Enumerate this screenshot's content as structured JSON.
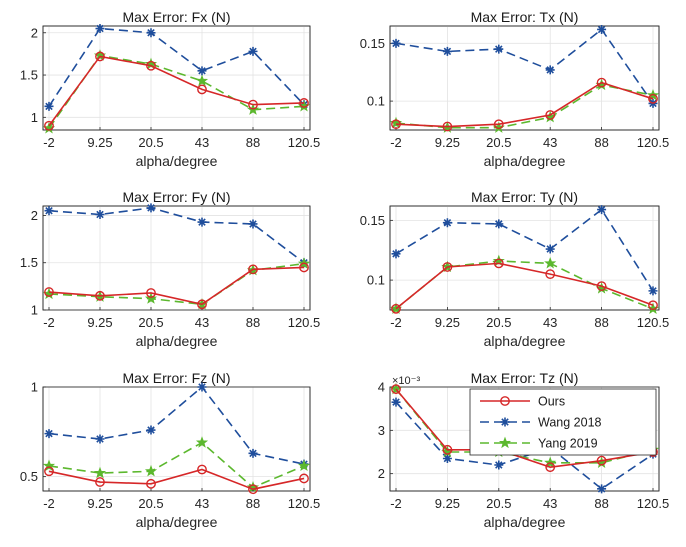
{
  "legend": {
    "entries": [
      "Ours",
      "Wang 2018",
      "Yang 2019"
    ]
  },
  "series_styles": [
    {
      "name": "Ours",
      "color": "#d62728",
      "marker": "circle",
      "dash": "solid"
    },
    {
      "name": "Wang 2018",
      "color": "#1f4e9c",
      "marker": "asterisk",
      "dash": "dashed"
    },
    {
      "name": "Yang 2019",
      "color": "#5cb82e",
      "marker": "star",
      "dash": "dashed"
    }
  ],
  "chart_data": [
    {
      "type": "line",
      "title": "Max Error: Fx (N)",
      "xlabel": "alpha/degree",
      "ylabel": "",
      "categories": [
        "-2",
        "9.25",
        "20.5",
        "43",
        "88",
        "120.5"
      ],
      "yticks": [
        "1",
        "1.5",
        "2"
      ],
      "ytick_values": [
        1,
        1.5,
        2
      ],
      "ylim": [
        0.85,
        2.08
      ],
      "grid": true,
      "series": [
        {
          "name": "Ours",
          "values": [
            0.9,
            1.72,
            1.61,
            1.33,
            1.15,
            1.17
          ]
        },
        {
          "name": "Wang 2018",
          "values": [
            1.13,
            2.05,
            2.0,
            1.55,
            1.78,
            1.15
          ]
        },
        {
          "name": "Yang 2019",
          "values": [
            0.87,
            1.73,
            1.63,
            1.43,
            1.09,
            1.13
          ]
        }
      ]
    },
    {
      "type": "line",
      "title": "Max Error: Tx (N)",
      "xlabel": "alpha/degree",
      "ylabel": "",
      "categories": [
        "-2",
        "9.25",
        "20.5",
        "43",
        "88",
        "120.5"
      ],
      "yticks": [
        "0.1",
        "0.15"
      ],
      "ytick_values": [
        0.1,
        0.15
      ],
      "ylim": [
        0.075,
        0.165
      ],
      "grid": true,
      "series": [
        {
          "name": "Ours",
          "values": [
            0.08,
            0.078,
            0.08,
            0.088,
            0.116,
            0.102
          ]
        },
        {
          "name": "Wang 2018",
          "values": [
            0.15,
            0.143,
            0.145,
            0.127,
            0.162,
            0.098
          ]
        },
        {
          "name": "Yang 2019",
          "values": [
            0.081,
            0.077,
            0.077,
            0.086,
            0.114,
            0.105
          ]
        }
      ]
    },
    {
      "type": "line",
      "title": "Max Error: Fy (N)",
      "xlabel": "alpha/degree",
      "ylabel": "",
      "categories": [
        "-2",
        "9.25",
        "20.5",
        "43",
        "88",
        "120.5"
      ],
      "yticks": [
        "1",
        "1.5",
        "2"
      ],
      "ytick_values": [
        1,
        1.5,
        2
      ],
      "ylim": [
        1.0,
        2.1
      ],
      "grid": true,
      "series": [
        {
          "name": "Ours",
          "values": [
            1.19,
            1.15,
            1.18,
            1.06,
            1.43,
            1.45
          ]
        },
        {
          "name": "Wang 2018",
          "values": [
            2.05,
            2.01,
            2.08,
            1.93,
            1.91,
            1.5
          ]
        },
        {
          "name": "Yang 2019",
          "values": [
            1.17,
            1.14,
            1.12,
            1.06,
            1.42,
            1.49
          ]
        }
      ]
    },
    {
      "type": "line",
      "title": "Max Error: Ty (N)",
      "xlabel": "alpha/degree",
      "ylabel": "",
      "categories": [
        "-2",
        "9.25",
        "20.5",
        "43",
        "88",
        "120.5"
      ],
      "yticks": [
        "0.1",
        "0.15"
      ],
      "ytick_values": [
        0.1,
        0.15
      ],
      "ylim": [
        0.075,
        0.162
      ],
      "grid": true,
      "series": [
        {
          "name": "Ours",
          "values": [
            0.076,
            0.111,
            0.114,
            0.105,
            0.095,
            0.079
          ]
        },
        {
          "name": "Wang 2018",
          "values": [
            0.122,
            0.148,
            0.147,
            0.126,
            0.159,
            0.091
          ]
        },
        {
          "name": "Yang 2019",
          "values": [
            0.076,
            0.111,
            0.116,
            0.114,
            0.093,
            0.076
          ]
        }
      ]
    },
    {
      "type": "line",
      "title": "Max Error: Fz (N)",
      "xlabel": "alpha/degree",
      "ylabel": "",
      "categories": [
        "-2",
        "9.25",
        "20.5",
        "43",
        "88",
        "120.5"
      ],
      "yticks": [
        "0.5",
        "1"
      ],
      "ytick_values": [
        0.5,
        1
      ],
      "ylim": [
        0.42,
        1.0
      ],
      "grid": true,
      "series": [
        {
          "name": "Ours",
          "values": [
            0.53,
            0.47,
            0.46,
            0.54,
            0.43,
            0.49
          ]
        },
        {
          "name": "Wang 2018",
          "values": [
            0.74,
            0.71,
            0.76,
            1.0,
            0.63,
            0.57
          ]
        },
        {
          "name": "Yang 2019",
          "values": [
            0.56,
            0.52,
            0.53,
            0.69,
            0.44,
            0.56
          ]
        }
      ]
    },
    {
      "type": "line",
      "title": "Max Error: Tz (N)",
      "xlabel": "alpha/degree",
      "ylabel": "",
      "exponent_label": "×10⁻³",
      "categories": [
        "-2",
        "9.25",
        "20.5",
        "43",
        "88",
        "120.5"
      ],
      "yticks": [
        "2",
        "3",
        "4"
      ],
      "ytick_values": [
        2,
        3,
        4
      ],
      "ylim": [
        1.6,
        4.0
      ],
      "grid": true,
      "legend_position": "top-right",
      "series": [
        {
          "name": "Ours",
          "values": [
            3.95,
            2.55,
            2.55,
            2.15,
            2.3,
            2.5
          ]
        },
        {
          "name": "Wang 2018",
          "values": [
            3.65,
            2.35,
            2.2,
            2.6,
            1.65,
            2.45
          ]
        },
        {
          "name": "Yang 2019",
          "values": [
            3.95,
            2.5,
            2.5,
            2.25,
            2.25,
            2.55
          ]
        }
      ]
    }
  ]
}
